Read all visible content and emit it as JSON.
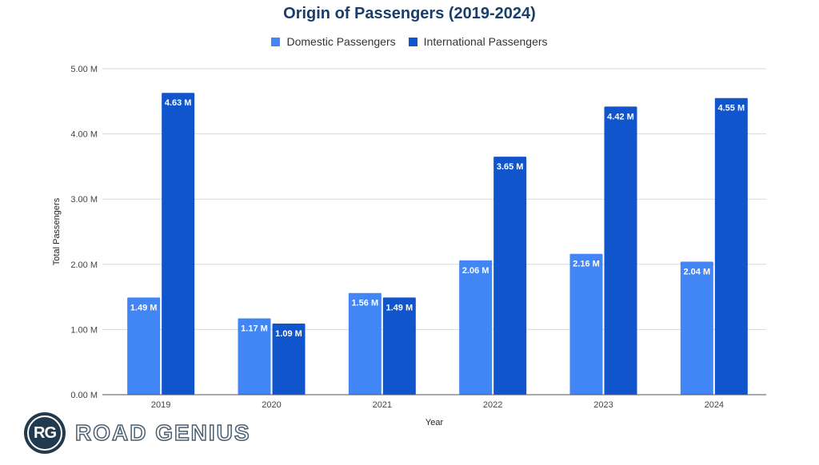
{
  "chart_data": {
    "type": "bar",
    "title": "Origin of Passengers (2019-2024)",
    "xlabel": "Year",
    "ylabel": "Total Passengers",
    "categories": [
      "2019",
      "2020",
      "2021",
      "2022",
      "2023",
      "2024"
    ],
    "series": [
      {
        "name": "Domestic Passengers",
        "color": "#4285f4",
        "values": [
          1.49,
          1.17,
          1.56,
          2.06,
          2.16,
          2.04
        ],
        "labels": [
          "1.49 M",
          "1.17 M",
          "1.56 M",
          "2.06 M",
          "2.16 M",
          "2.04 M"
        ]
      },
      {
        "name": "International Passengers",
        "color": "#1155cc",
        "values": [
          4.63,
          1.09,
          1.49,
          3.65,
          4.42,
          4.55
        ],
        "labels": [
          "4.63 M",
          "1.09 M",
          "1.49 M",
          "3.65 M",
          "4.42 M",
          "4.55 M"
        ]
      }
    ],
    "unit": "M",
    "ylim": [
      0,
      5
    ],
    "yticks": [
      0,
      1,
      2,
      3,
      4,
      5
    ],
    "ytick_labels": [
      "0.00 M",
      "1.00 M",
      "2.00 M",
      "3.00 M",
      "4.00 M",
      "5.00 M"
    ],
    "grid": true,
    "legend_position": "top-center"
  },
  "branding": {
    "logo_initials": "RG",
    "logo_text": "ROAD GENIUS"
  }
}
